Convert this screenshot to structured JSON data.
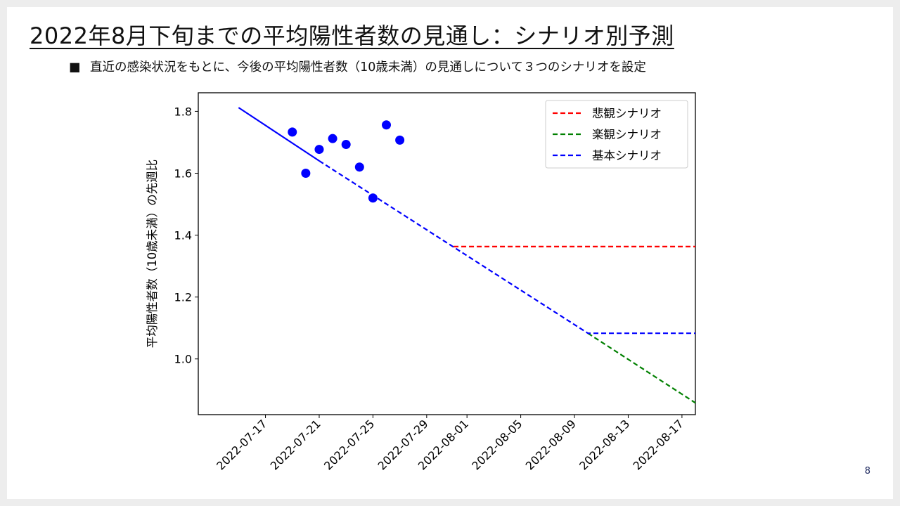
{
  "slide": {
    "title": "2022年8月下旬までの平均陽性者数の見通し：シナリオ別予測",
    "bullet": "■",
    "bullet_text": "直近の感染状況をもとに、今後の平均陽性者数（10歳未満）の見通しについて３つのシナリオを設定",
    "page_number": "8"
  },
  "chart_data": {
    "type": "line",
    "title": "",
    "xlabel": "",
    "ylabel": "平均陽性者数（10歳未満）の先週比",
    "xlim": [
      "2022-07-12",
      "2022-08-18"
    ],
    "ylim": [
      0.82,
      1.86
    ],
    "x_ticks": [
      "2022-07-17",
      "2022-07-21",
      "2022-07-25",
      "2022-07-29",
      "2022-08-01",
      "2022-08-05",
      "2022-08-09",
      "2022-08-13",
      "2022-08-17"
    ],
    "y_ticks": [
      "1.0",
      "1.2",
      "1.4",
      "1.6",
      "1.8"
    ],
    "grid": false,
    "legend_position": "top-right",
    "observed_points": {
      "color": "#0000ff",
      "points": [
        {
          "x": "2022-07-19",
          "y": 1.733
        },
        {
          "x": "2022-07-20",
          "y": 1.6
        },
        {
          "x": "2022-07-21",
          "y": 1.677
        },
        {
          "x": "2022-07-22",
          "y": 1.712
        },
        {
          "x": "2022-07-23",
          "y": 1.693
        },
        {
          "x": "2022-07-24",
          "y": 1.62
        },
        {
          "x": "2022-07-25",
          "y": 1.52
        },
        {
          "x": "2022-07-26",
          "y": 1.756
        },
        {
          "x": "2022-07-27",
          "y": 1.707
        }
      ]
    },
    "fitted_trend": {
      "color": "#0000ff",
      "style": "solid",
      "points": [
        {
          "x": "2022-07-15",
          "y": 1.812
        },
        {
          "x": "2022-07-21",
          "y": 1.64
        }
      ]
    },
    "series": [
      {
        "name": "悲観シナリオ",
        "color": "#ff0000",
        "style": "dashed",
        "points": [
          {
            "x": "2022-07-31",
            "y": 1.363
          },
          {
            "x": "2022-08-18",
            "y": 1.363
          }
        ]
      },
      {
        "name": "楽観シナリオ",
        "color": "#008000",
        "style": "dashed",
        "points": [
          {
            "x": "2022-08-10",
            "y": 1.083
          },
          {
            "x": "2022-08-18",
            "y": 0.858
          }
        ]
      },
      {
        "name": "基本シナリオ",
        "color": "#0000ff",
        "style": "dashed",
        "points": [
          {
            "x": "2022-07-21",
            "y": 1.64
          },
          {
            "x": "2022-08-10",
            "y": 1.083
          },
          {
            "x": "2022-08-10",
            "y": 1.083
          },
          {
            "x": "2022-08-18",
            "y": 1.083
          }
        ]
      }
    ]
  }
}
